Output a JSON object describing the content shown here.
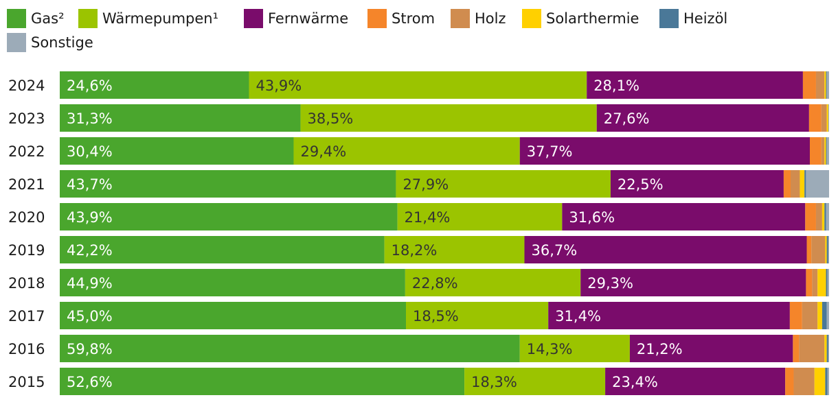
{
  "chart_data": {
    "type": "bar",
    "orientation": "horizontal",
    "stacked": true,
    "percent_stacked": true,
    "title": "",
    "xlabel": "",
    "ylabel": "",
    "grid": false,
    "legend_position": "top",
    "categories": [
      "2024",
      "2023",
      "2022",
      "2021",
      "2020",
      "2019",
      "2018",
      "2017",
      "2016",
      "2015"
    ],
    "series": [
      {
        "name": "Gas²",
        "color": "#4aa62d",
        "values": [
          24.6,
          31.3,
          30.4,
          43.7,
          43.9,
          42.2,
          44.9,
          45.0,
          59.8,
          52.6
        ],
        "labels": [
          "24,6%",
          "31,3%",
          "30,4%",
          "43,7%",
          "43,9%",
          "42,2%",
          "44,9%",
          "45,0%",
          "59,8%",
          "52,6%"
        ]
      },
      {
        "name": "Wärmepumpen¹",
        "color": "#9bc400",
        "values": [
          43.9,
          38.5,
          29.4,
          27.9,
          21.4,
          18.2,
          22.8,
          18.5,
          14.3,
          18.3
        ],
        "labels": [
          "43,9%",
          "38,5%",
          "29,4%",
          "27,9%",
          "21,4%",
          "18,2%",
          "22,8%",
          "18,5%",
          "14,3%",
          "18,3%"
        ]
      },
      {
        "name": "Fernwärme",
        "color": "#7a0c6b",
        "values": [
          28.1,
          27.6,
          37.7,
          22.5,
          31.6,
          36.7,
          29.3,
          31.4,
          21.2,
          23.4
        ],
        "labels": [
          "28,1%",
          "27,6%",
          "37,7%",
          "22,5%",
          "31,6%",
          "36,7%",
          "29,3%",
          "31,4%",
          "21,2%",
          "23,4%"
        ]
      },
      {
        "name": "Strom",
        "color": "#f5852a",
        "values": [
          1.7,
          1.6,
          1.5,
          0.9,
          1.4,
          0.6,
          0.8,
          1.6,
          0.8,
          1.1
        ]
      },
      {
        "name": "Holz",
        "color": "#d08c4f",
        "values": [
          1.1,
          0.7,
          0.4,
          1.2,
          0.8,
          1.8,
          0.7,
          2.0,
          3.3,
          2.7
        ]
      },
      {
        "name": "Solarthermie",
        "color": "#ffd000",
        "values": [
          0.2,
          0.2,
          0.2,
          0.6,
          0.3,
          0.2,
          1.1,
          0.6,
          0.3,
          1.4
        ]
      },
      {
        "name": "Heizöl",
        "color": "#4a7898",
        "values": [
          0.1,
          0.0,
          0.1,
          0.2,
          0.2,
          0.2,
          0.2,
          0.6,
          0.2,
          0.3
        ]
      },
      {
        "name": "Sonstige",
        "color": "#9cabb8",
        "values": [
          0.3,
          0.1,
          0.3,
          3.0,
          0.4,
          0.1,
          0.2,
          0.3,
          0.1,
          0.2
        ]
      }
    ],
    "label_text_colors": [
      "#ffffff",
      "#333333",
      "#ffffff"
    ]
  }
}
